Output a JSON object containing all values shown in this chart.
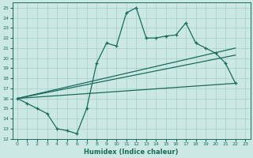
{
  "xlabel": "Humidex (Indice chaleur)",
  "bg_color": "#cce8e4",
  "grid_color": "#aad4cc",
  "line_color": "#1a6b5a",
  "xlim": [
    -0.5,
    23.5
  ],
  "ylim": [
    12,
    25.5
  ],
  "yticks": [
    12,
    13,
    14,
    15,
    16,
    17,
    18,
    19,
    20,
    21,
    22,
    23,
    24,
    25
  ],
  "xticks": [
    0,
    1,
    2,
    3,
    4,
    5,
    6,
    7,
    8,
    9,
    10,
    11,
    12,
    13,
    14,
    15,
    16,
    17,
    18,
    19,
    20,
    21,
    22,
    23
  ],
  "series": [
    {
      "x": [
        0,
        1,
        2,
        3,
        4,
        5,
        6,
        7,
        8,
        9,
        10,
        11,
        12,
        13,
        14,
        15,
        16,
        17,
        18,
        19,
        20,
        21,
        22
      ],
      "y": [
        16,
        15.5,
        15,
        14.5,
        13,
        12.8,
        12.5,
        15,
        19.5,
        21.5,
        21.2,
        24.5,
        25,
        22,
        22,
        22.2,
        22.3,
        23.5,
        21.5,
        21,
        20.5,
        19.5,
        17.5
      ]
    },
    {
      "x": [
        0,
        22
      ],
      "y": [
        16,
        17.5
      ]
    },
    {
      "x": [
        0,
        22
      ],
      "y": [
        16,
        21.0
      ]
    },
    {
      "x": [
        0,
        22
      ],
      "y": [
        16,
        20.3
      ]
    }
  ]
}
